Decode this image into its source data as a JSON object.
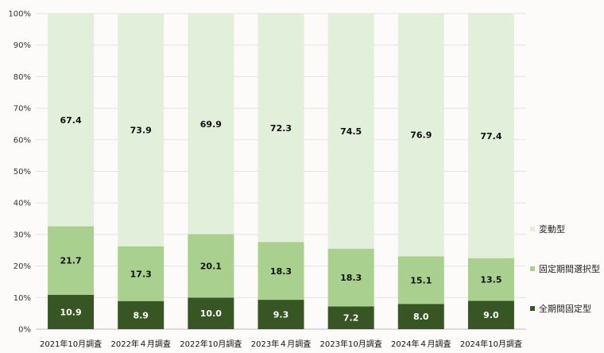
{
  "chart_data": {
    "type": "bar",
    "stacked": true,
    "categories": [
      "2021年10月調査",
      "2022年４月調査",
      "2022年10月調査",
      "2023年４月調査",
      "2023年10月調査",
      "2024年４月調査",
      "2024年10月調査"
    ],
    "series": [
      {
        "name": "全期間固定型",
        "values": [
          10.9,
          8.9,
          10.0,
          9.3,
          7.2,
          8.0,
          9.0
        ],
        "color": "#375623",
        "label_color": "#ffffff"
      },
      {
        "name": "固定期間選択型",
        "values": [
          21.7,
          17.3,
          20.1,
          18.3,
          18.3,
          15.1,
          13.5
        ],
        "color": "#a9d08e",
        "label_color": "#111111"
      },
      {
        "name": "変動型",
        "values": [
          67.4,
          73.9,
          69.9,
          72.3,
          74.5,
          76.9,
          77.4
        ],
        "color": "#e2efda",
        "label_color": "#111111"
      }
    ],
    "value_labels": [
      [
        "10.9",
        "8.9",
        "10.0",
        "9.3",
        "7.2",
        "8.0",
        "9.0"
      ],
      [
        "21.7",
        "17.3",
        "20.1",
        "18.3",
        "18.3",
        "15.1",
        "13.5"
      ],
      [
        "67.4",
        "73.9",
        "69.9",
        "72.3",
        "74.5",
        "76.9",
        "77.4"
      ]
    ],
    "y_ticks": [
      "0%",
      "10%",
      "20%",
      "30%",
      "40%",
      "50%",
      "60%",
      "70%",
      "80%",
      "90%",
      "100%"
    ],
    "ylim": [
      0,
      100
    ],
    "grid": true,
    "legend_position": "right",
    "legend_order": [
      "変動型",
      "固定期間選択型",
      "全期間固定型"
    ],
    "title": "",
    "xlabel": "",
    "ylabel": ""
  }
}
